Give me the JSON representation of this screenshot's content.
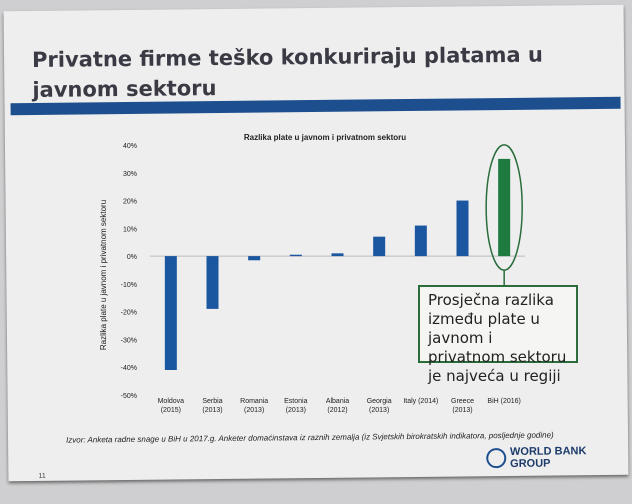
{
  "slide": {
    "title": "Privatne firme teško konkuriraju platama u javnom sektoru",
    "source": "Izvor: Anketa radne snage u BiH u 2017.g. Anketer domaćinstava iz raznih zemalja (iz Svjetskih birokratskih indikatora, posljednje godine)",
    "page": "11",
    "logo_text": "WORLD BANK GROUP",
    "callout": "Prosječna razlika između plate u javnom i privatnom sektoru je najveća u regiji"
  },
  "chart_data": {
    "type": "bar",
    "title": "Razlika plate u javnom i privatnom sektoru",
    "xlabel": "",
    "ylabel": "Razlika plate u javnom i privatnom sektoru",
    "categories": [
      "Moldova (2015)",
      "Serbia (2013)",
      "Romania (2013)",
      "Estonia (2013)",
      "Albania (2012)",
      "Georgia (2013)",
      "Italy (2014)",
      "Greece (2013)",
      "BiH (2016)"
    ],
    "values": [
      -41,
      -19,
      -1.5,
      0.5,
      1,
      7,
      11,
      20,
      35
    ],
    "ylim": [
      -50,
      40
    ],
    "yticks": [
      "-50%",
      "-40%",
      "-30%",
      "-20%",
      "-10%",
      "0%",
      "10%",
      "20%",
      "30%",
      "40%"
    ],
    "colors": {
      "default": "#1b56a0",
      "highlight": "#1e7a3e"
    },
    "highlight": "BiH (2016)",
    "grid": false
  }
}
